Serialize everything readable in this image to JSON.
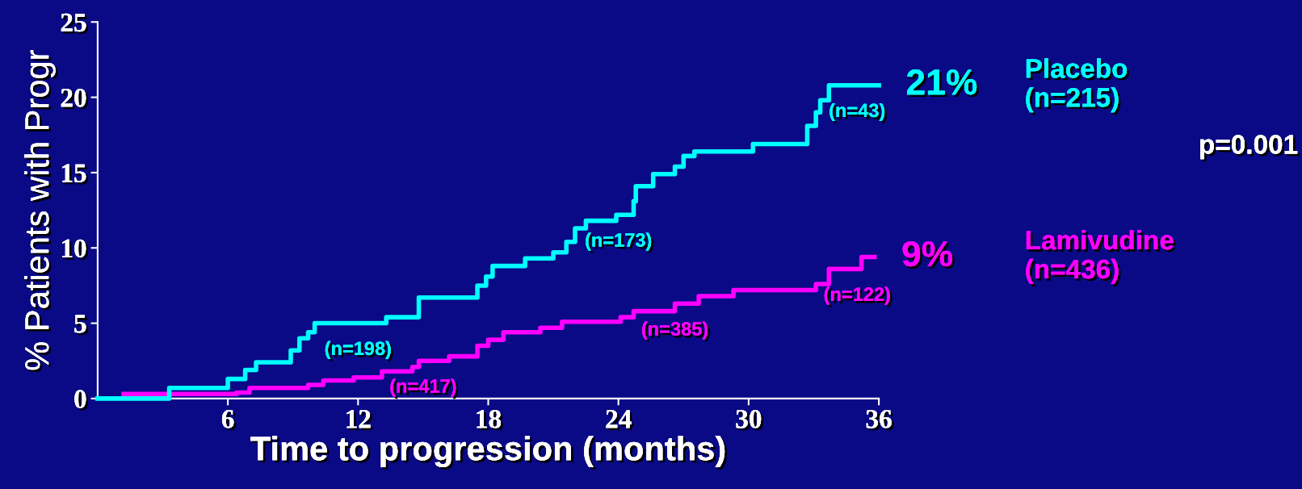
{
  "chart_data": {
    "type": "step",
    "xlabel": "Time to progression (months)",
    "ylabel": "% Patients with Progr",
    "xlim": [
      0,
      36
    ],
    "xticks": [
      6,
      12,
      18,
      24,
      30,
      36
    ],
    "ylim": [
      0,
      25
    ],
    "yticks": [
      0,
      5,
      10,
      15,
      20,
      25
    ],
    "grid": false,
    "legend": false,
    "line_style": "solid",
    "marker": "none",
    "series": [
      {
        "name": "Placebo\n(n=215)",
        "color": "#00ffff",
        "x": [
          0,
          3.3,
          5.8,
          6.0,
          6.8,
          7.3,
          8.9,
          9.3,
          9.7,
          10.0,
          13.3,
          14.8,
          17.5,
          17.9,
          18.2,
          19.7,
          21.0,
          21.6,
          22.0,
          22.5,
          23.9,
          24.7,
          24.8,
          25.6,
          26.6,
          27.0,
          27.5,
          30.2,
          32.7,
          33.1,
          33.3,
          33.7,
          36
        ],
        "values": [
          0,
          0.7,
          0.7,
          1.3,
          1.9,
          2.4,
          3.2,
          4.0,
          4.4,
          5.0,
          5.4,
          6.7,
          7.5,
          8.1,
          8.8,
          9.3,
          9.7,
          10.4,
          11.3,
          11.8,
          12.2,
          13.1,
          14.1,
          14.9,
          15.4,
          16.1,
          16.4,
          16.9,
          18.1,
          19.0,
          19.8,
          20.8,
          20.8
        ]
      },
      {
        "name": "Lamivudine\n(n=436)",
        "color": "#ff00ff",
        "x": [
          1.2,
          6.4,
          7.0,
          9.7,
          10.4,
          11.8,
          13.1,
          14.5,
          14.8,
          16.2,
          17.5,
          18.0,
          18.7,
          20.4,
          21.4,
          24.1,
          24.7,
          26.6,
          27.7,
          29.3,
          33.1,
          33.7,
          35.2,
          35.8
        ],
        "values": [
          0.3,
          0.4,
          0.7,
          0.9,
          1.2,
          1.4,
          1.8,
          2.1,
          2.5,
          2.8,
          3.5,
          3.9,
          4.4,
          4.7,
          5.1,
          5.4,
          5.8,
          6.3,
          6.8,
          7.2,
          7.6,
          8.6,
          9.4,
          9.4
        ]
      }
    ],
    "annotations": [
      {
        "text": "21%",
        "x": 36,
        "y": 20.8
      },
      {
        "text": "9%",
        "x": 35.8,
        "y": 9.4
      },
      {
        "text": "(n=198)",
        "x": 12,
        "y": 5.0
      },
      {
        "text": "(n=173)",
        "x": 24,
        "y": 12.2
      },
      {
        "text": "(n=43)",
        "x": 35,
        "y": 20.8
      },
      {
        "text": "(n=417)",
        "x": 15,
        "y": 2.5
      },
      {
        "text": "(n=385)",
        "x": 26.6,
        "y": 6.3
      },
      {
        "text": "(n=122)",
        "x": 35,
        "y": 8.6
      },
      "p=0.001"
    ]
  }
}
